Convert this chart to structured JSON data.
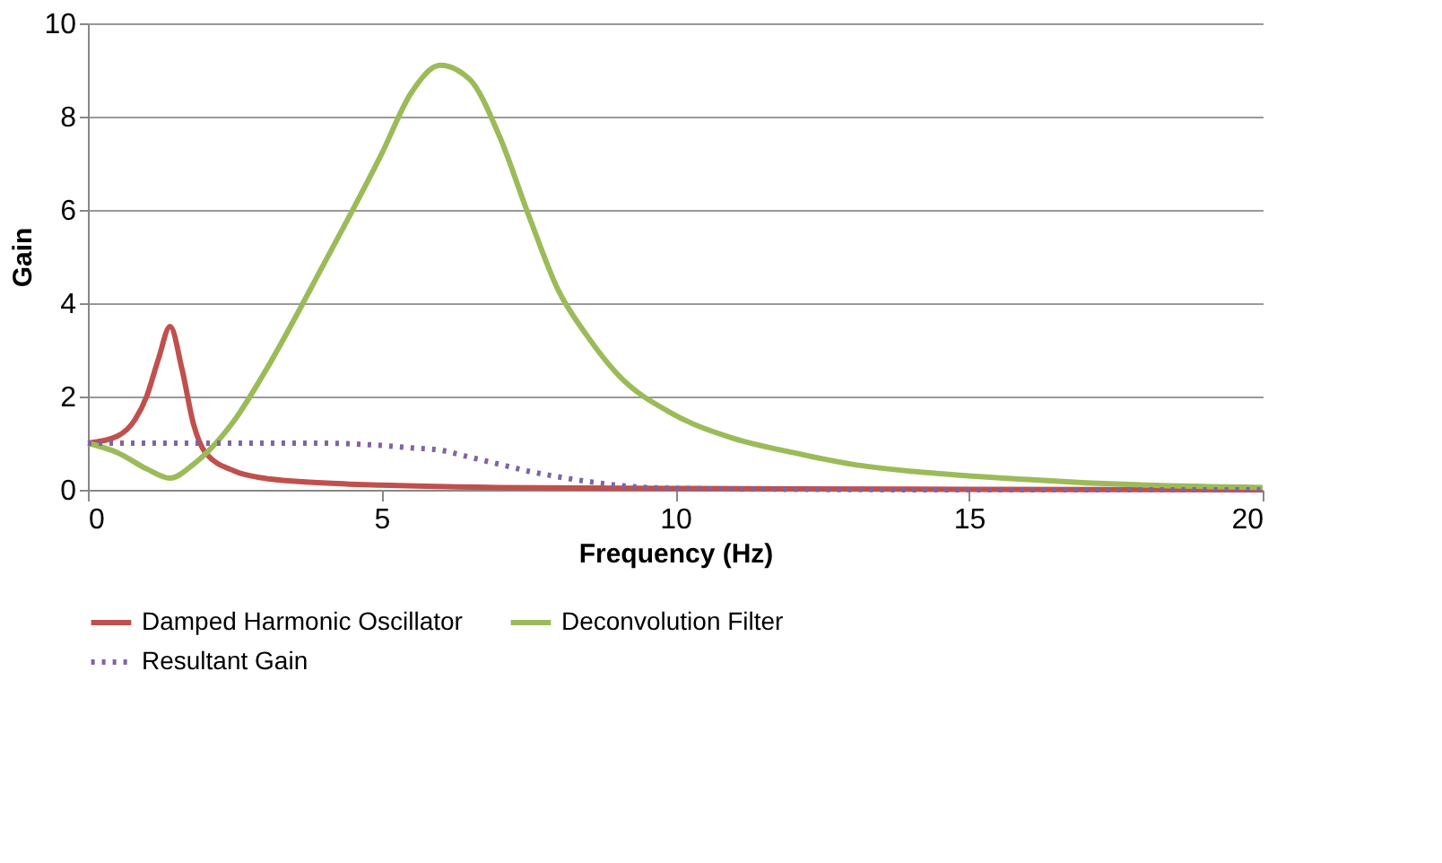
{
  "chart_data": {
    "type": "line",
    "xlabel": "Frequency (Hz)",
    "ylabel": "Gain",
    "xlim": [
      0,
      20
    ],
    "xticks": [
      0,
      5,
      10,
      15,
      20
    ],
    "ylim": [
      0,
      10
    ],
    "yticks": [
      0,
      2,
      4,
      6,
      8,
      10
    ],
    "grid": "y",
    "legend": "bottom",
    "marker": "none",
    "series": [
      {
        "name": "Damped Harmonic Oscillator",
        "color": "#c0504d",
        "line_style": "solid",
        "x": [
          0,
          0.5,
          0.8,
          1.0,
          1.2,
          1.4,
          1.6,
          1.8,
          2.0,
          2.5,
          3,
          4,
          5,
          7,
          10,
          15,
          20
        ],
        "values": [
          1,
          1.15,
          1.5,
          2.0,
          2.8,
          3.5,
          2.6,
          1.4,
          0.8,
          0.4,
          0.25,
          0.15,
          0.1,
          0.05,
          0.03,
          0.01,
          0
        ]
      },
      {
        "name": "Deconvolution Filter",
        "color": "#9bbb59",
        "line_style": "solid",
        "x": [
          0,
          0.5,
          1.0,
          1.4,
          1.8,
          2.5,
          3,
          4,
          5,
          5.5,
          6,
          6.5,
          7,
          7.5,
          8,
          8.5,
          9,
          10,
          11,
          12,
          13,
          14,
          15,
          16,
          17,
          18,
          20
        ],
        "values": [
          1,
          0.8,
          0.45,
          0.25,
          0.55,
          1.5,
          2.5,
          4.8,
          7.2,
          8.5,
          9.1,
          8.8,
          7.6,
          5.9,
          4.3,
          3.3,
          2.5,
          1.6,
          1.1,
          0.8,
          0.55,
          0.4,
          0.3,
          0.22,
          0.15,
          0.1,
          0.05
        ]
      },
      {
        "name": "Resultant Gain",
        "color": "#8064a2",
        "line_style": "dotted",
        "x": [
          0,
          1,
          2,
          3,
          4,
          5,
          5.5,
          6,
          6.5,
          7,
          7.5,
          8,
          8.5,
          9,
          10,
          12,
          15,
          20
        ],
        "values": [
          1,
          1,
          1,
          1,
          1,
          0.95,
          0.9,
          0.85,
          0.7,
          0.55,
          0.4,
          0.28,
          0.18,
          0.1,
          0.03,
          0.01,
          0,
          0
        ]
      }
    ]
  }
}
